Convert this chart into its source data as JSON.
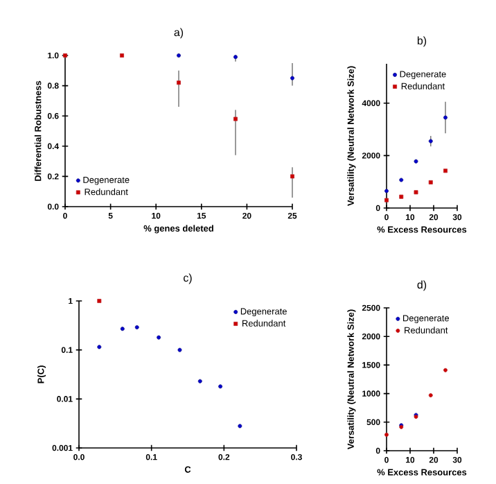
{
  "chart_data": [
    {
      "type": "scatter",
      "title": "a)",
      "xlabel": "% genes deleted",
      "ylabel": "Differential Robustness",
      "xlim": [
        0,
        25
      ],
      "ylim": [
        0,
        1.0
      ],
      "xticks": [
        0,
        5,
        10,
        15,
        20,
        25
      ],
      "yticks": [
        {
          "value": 0,
          "label": "0.0"
        },
        {
          "value": 0.2,
          "label": "0.2"
        },
        {
          "value": 0.4,
          "label": "0.4"
        },
        {
          "value": 0.6,
          "label": "0.6"
        },
        {
          "value": 0.8,
          "label": "0.8"
        },
        {
          "value": 1.0,
          "label": "1.0"
        }
      ],
      "legend": "bottom left",
      "x": [
        0,
        6.25,
        12.5,
        18.75,
        25
      ],
      "series": [
        {
          "name": "Degenerate",
          "color": "#1a1a8c",
          "marker": "circle",
          "values": [
            null,
            null,
            1.0,
            0.99,
            0.85
          ],
          "errors": [
            null,
            null,
            null,
            [
              0.96,
              1.0
            ],
            [
              0.8,
              0.95
            ]
          ]
        },
        {
          "name": "Redundant",
          "color": "#c0282d",
          "marker": "square",
          "values": [
            1.0,
            1.0,
            0.82,
            0.58,
            0.2
          ],
          "errors": [
            null,
            null,
            [
              0.66,
              0.9
            ],
            [
              0.34,
              0.64
            ],
            [
              0.06,
              0.26
            ]
          ]
        }
      ]
    },
    {
      "type": "scatter",
      "title": "b)",
      "xlabel": "% Excess Resources",
      "ylabel": "Versatility (Neutral Network Size)",
      "xlim": [
        0,
        30
      ],
      "ylim": [
        0,
        5500
      ],
      "xticks": [
        0,
        10,
        20,
        30
      ],
      "yticks": [
        0,
        2000,
        4000
      ],
      "legend": "top left",
      "x": [
        0,
        6.25,
        12.5,
        18.75,
        25
      ],
      "series": [
        {
          "name": "Degenerate",
          "color": "#1a1a8c",
          "marker": "circle",
          "values": [
            650,
            1070,
            1780,
            2550,
            3450
          ],
          "errors": [
            null,
            null,
            null,
            200,
            600
          ]
        },
        {
          "name": "Redundant",
          "color": "#c0282d",
          "marker": "square",
          "values": [
            300,
            430,
            600,
            980,
            1420
          ]
        }
      ]
    },
    {
      "type": "scatter",
      "title": "c)",
      "xlabel": "C",
      "ylabel": "P(C)",
      "log": "y",
      "xlim": [
        0,
        0.3
      ],
      "ylim": [
        0.001,
        1
      ],
      "xticks": [
        {
          "value": 0,
          "label": "0.0"
        },
        0.1,
        0.2,
        0.3
      ],
      "yticks": [
        0.001,
        0.01,
        0.1,
        1
      ],
      "legend": "top right",
      "series": [
        {
          "name": "Degenerate",
          "color": "#1a1a8c",
          "marker": "circle",
          "x": [
            0.028,
            0.06,
            0.08,
            0.11,
            0.139,
            0.167,
            0.195,
            0.222
          ],
          "values": [
            0.115,
            0.27,
            0.29,
            0.18,
            0.1,
            0.023,
            0.018,
            0.0028
          ]
        },
        {
          "name": "Redundant",
          "color": "#c0282d",
          "marker": "square",
          "x": [
            0.028
          ],
          "values": [
            1
          ]
        }
      ]
    },
    {
      "type": "scatter",
      "title": "d)",
      "xlabel": "% Excess Resources",
      "ylabel": "Versatility (Neutral Network Size)",
      "xlim": [
        0,
        30
      ],
      "ylim": [
        0,
        2500
      ],
      "xticks": [
        0,
        10,
        20,
        30
      ],
      "yticks": [
        0,
        500,
        1000,
        1500,
        2000,
        2500
      ],
      "legend": "top right",
      "x": [
        0,
        6.25,
        12.5,
        18.75,
        25
      ],
      "series": [
        {
          "name": "Degenerate",
          "color": "#1a1a8c",
          "marker": "circle",
          "values": [
            null,
            445,
            625,
            null,
            null
          ]
        },
        {
          "name": "Redundant",
          "color": "#c0282d",
          "marker": "circle",
          "values": [
            280,
            415,
            595,
            970,
            1410
          ]
        }
      ]
    }
  ]
}
